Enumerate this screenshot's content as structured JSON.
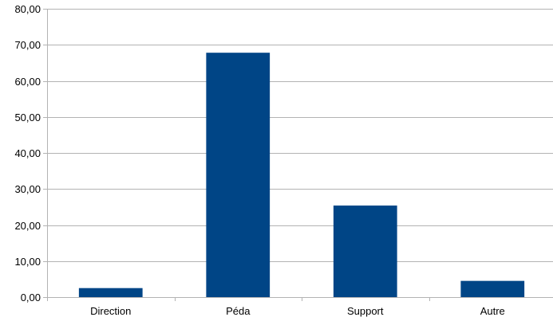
{
  "chart_data": {
    "type": "bar",
    "title": "",
    "xlabel": "",
    "ylabel": "",
    "categories": [
      "Direction",
      "Péda",
      "Support",
      "Autre"
    ],
    "values": [
      2.5,
      67.8,
      25.4,
      4.5
    ],
    "ylim": [
      0,
      80
    ],
    "yticks": [
      0,
      10,
      20,
      30,
      40,
      50,
      60,
      70,
      80
    ],
    "ytick_labels": [
      "0,00",
      "10,00",
      "20,00",
      "30,00",
      "40,00",
      "50,00",
      "60,00",
      "70,00",
      "80,00"
    ],
    "grid": "horizontal",
    "legend": "none",
    "bar_color": "#004586",
    "grid_color": "#b3b3b3",
    "axis_color": "#b3b3b3"
  }
}
